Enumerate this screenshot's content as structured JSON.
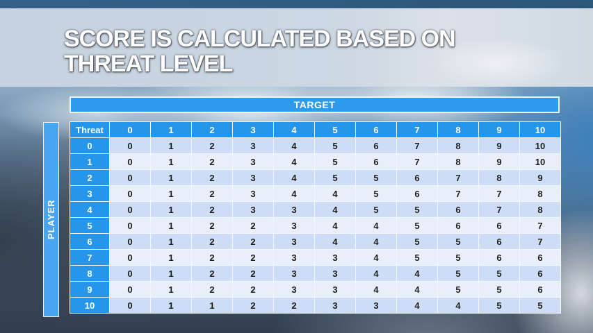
{
  "slide": {
    "title_lines": [
      "SCORE IS CALCULATED BASED ON",
      "THREAT LEVEL"
    ]
  },
  "matrix": {
    "target_label": "TARGET",
    "player_label": "PLAYER",
    "corner_label": "Threat",
    "columns": [
      "0",
      "1",
      "2",
      "3",
      "4",
      "5",
      "6",
      "7",
      "8",
      "9",
      "10"
    ],
    "rows": [
      {
        "threat": "0",
        "values": [
          "0",
          "1",
          "2",
          "3",
          "4",
          "5",
          "6",
          "7",
          "8",
          "9",
          "10"
        ]
      },
      {
        "threat": "1",
        "values": [
          "0",
          "1",
          "2",
          "3",
          "4",
          "5",
          "6",
          "7",
          "8",
          "9",
          "10"
        ]
      },
      {
        "threat": "2",
        "values": [
          "0",
          "1",
          "2",
          "3",
          "4",
          "5",
          "5",
          "6",
          "7",
          "8",
          "9"
        ]
      },
      {
        "threat": "3",
        "values": [
          "0",
          "1",
          "2",
          "3",
          "4",
          "4",
          "5",
          "6",
          "7",
          "7",
          "8"
        ]
      },
      {
        "threat": "4",
        "values": [
          "0",
          "1",
          "2",
          "3",
          "3",
          "4",
          "5",
          "5",
          "6",
          "7",
          "8"
        ]
      },
      {
        "threat": "5",
        "values": [
          "0",
          "1",
          "2",
          "2",
          "3",
          "4",
          "4",
          "5",
          "6",
          "6",
          "7"
        ]
      },
      {
        "threat": "6",
        "values": [
          "0",
          "1",
          "2",
          "2",
          "3",
          "4",
          "4",
          "5",
          "5",
          "6",
          "7"
        ]
      },
      {
        "threat": "7",
        "values": [
          "0",
          "1",
          "2",
          "2",
          "3",
          "3",
          "4",
          "5",
          "5",
          "6",
          "6"
        ]
      },
      {
        "threat": "8",
        "values": [
          "0",
          "1",
          "2",
          "2",
          "3",
          "3",
          "4",
          "4",
          "5",
          "5",
          "6"
        ]
      },
      {
        "threat": "9",
        "values": [
          "0",
          "1",
          "2",
          "2",
          "3",
          "3",
          "4",
          "4",
          "5",
          "5",
          "6"
        ]
      },
      {
        "threat": "10",
        "values": [
          "0",
          "1",
          "1",
          "2",
          "2",
          "3",
          "3",
          "4",
          "4",
          "5",
          "5"
        ]
      }
    ]
  },
  "colors": {
    "accent_blue": "#2e9cec",
    "header_blue": "#2596eb",
    "player_bar_blue": "#49a5ee",
    "row_dark": "#cdddf5",
    "row_light": "#e9eefb",
    "top_strip_blue": "#2f5b80",
    "title_band": "#ccd7e2",
    "cell_text": "#1d1d1d"
  }
}
